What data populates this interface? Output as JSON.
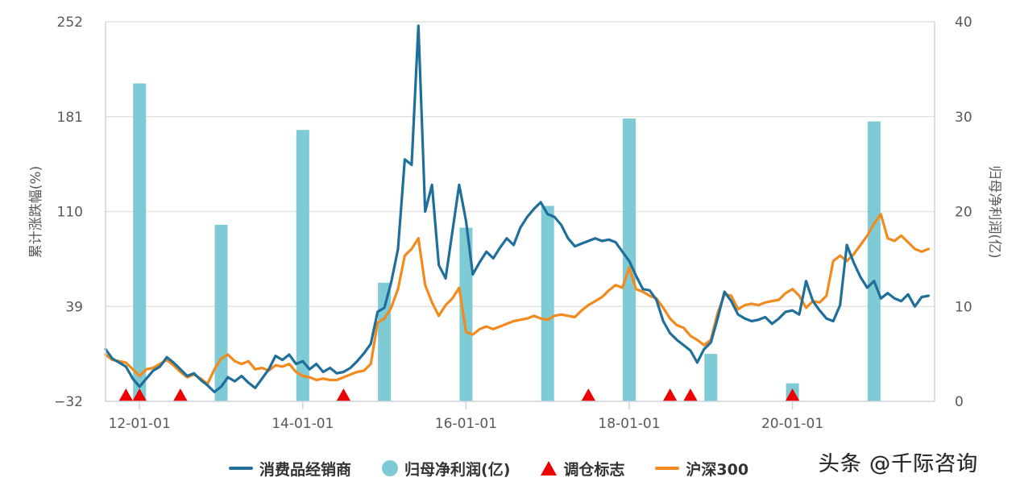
{
  "colors": {
    "distributor": "#1f6f9a",
    "net_profit": "#7ecbd6",
    "rebalance": "#ee0000",
    "csi300": "#f28a1e",
    "grid": "#e3e3e3",
    "axis": "#cdd3dd",
    "text": "#595959"
  },
  "legend": [
    {
      "key": "distributor",
      "label": "消费品经销商",
      "shape": "line"
    },
    {
      "key": "net_profit",
      "label": "归母净利润(亿)",
      "shape": "dot"
    },
    {
      "key": "rebalance",
      "label": "调仓标志",
      "shape": "triangle"
    },
    {
      "key": "csi300",
      "label": "沪深300",
      "shape": "line"
    }
  ],
  "watermark": "头条 @千际咨询",
  "chart_data": {
    "type": "line+bar",
    "title": "",
    "xlabel": "",
    "ylabel": "累计涨跌幅(%)",
    "y2label": "归母净利润(亿)",
    "ylim": [
      -32,
      252
    ],
    "y2lim": [
      0,
      40
    ],
    "yticks": [
      "252",
      "181",
      "110",
      "39",
      "-32"
    ],
    "y2ticks": [
      "40",
      "30",
      "20",
      "10",
      "0"
    ],
    "xticks": [
      "12-01-01",
      "14-01-01",
      "16-01-01",
      "18-01-01",
      "20-01-01"
    ],
    "xrange": [
      "2011-08",
      "2021-09"
    ],
    "grid": true,
    "legend_position": "bottom",
    "series": [
      {
        "name": "消费品经销商",
        "axis": "left",
        "type": "line",
        "points": [
          [
            "2011-08",
            7
          ],
          [
            "2011-09",
            0
          ],
          [
            "2011-10",
            -3
          ],
          [
            "2011-11",
            -6
          ],
          [
            "2011-12",
            -15
          ],
          [
            "2012-01",
            -21
          ],
          [
            "2012-02",
            -15
          ],
          [
            "2012-03",
            -9
          ],
          [
            "2012-04",
            -6
          ],
          [
            "2012-05",
            1
          ],
          [
            "2012-06",
            -3
          ],
          [
            "2012-07",
            -8
          ],
          [
            "2012-08",
            -13
          ],
          [
            "2012-09",
            -11
          ],
          [
            "2012-10",
            -16
          ],
          [
            "2012-11",
            -20
          ],
          [
            "2012-12",
            -25
          ],
          [
            "2013-01",
            -21
          ],
          [
            "2013-02",
            -14
          ],
          [
            "2013-03",
            -17
          ],
          [
            "2013-04",
            -13
          ],
          [
            "2013-05",
            -18
          ],
          [
            "2013-06",
            -22
          ],
          [
            "2013-07",
            -15
          ],
          [
            "2013-08",
            -8
          ],
          [
            "2013-09",
            2
          ],
          [
            "2013-10",
            -1
          ],
          [
            "2013-11",
            3
          ],
          [
            "2013-12",
            -4
          ],
          [
            "2014-01",
            -2
          ],
          [
            "2014-02",
            -8
          ],
          [
            "2014-03",
            -4
          ],
          [
            "2014-04",
            -10
          ],
          [
            "2014-05",
            -7
          ],
          [
            "2014-06",
            -11
          ],
          [
            "2014-07",
            -10
          ],
          [
            "2014-08",
            -7
          ],
          [
            "2014-09",
            -2
          ],
          [
            "2014-10",
            4
          ],
          [
            "2014-11",
            11
          ],
          [
            "2014-12",
            35
          ],
          [
            "2015-01",
            38
          ],
          [
            "2015-02",
            57
          ],
          [
            "2015-03",
            82
          ],
          [
            "2015-04",
            149
          ],
          [
            "2015-05",
            145
          ],
          [
            "2015-06",
            249
          ],
          [
            "2015-07",
            110
          ],
          [
            "2015-08",
            130
          ],
          [
            "2015-09",
            70
          ],
          [
            "2015-10",
            60
          ],
          [
            "2015-11",
            95
          ],
          [
            "2015-12",
            130
          ],
          [
            "2016-01",
            103
          ],
          [
            "2016-02",
            63
          ],
          [
            "2016-03",
            72
          ],
          [
            "2016-04",
            80
          ],
          [
            "2016-05",
            75
          ],
          [
            "2016-06",
            83
          ],
          [
            "2016-07",
            90
          ],
          [
            "2016-08",
            85
          ],
          [
            "2016-09",
            98
          ],
          [
            "2016-10",
            106
          ],
          [
            "2016-11",
            112
          ],
          [
            "2016-12",
            117
          ],
          [
            "2017-01",
            108
          ],
          [
            "2017-02",
            106
          ],
          [
            "2017-03",
            100
          ],
          [
            "2017-04",
            90
          ],
          [
            "2017-05",
            84
          ],
          [
            "2017-06",
            86
          ],
          [
            "2017-07",
            88
          ],
          [
            "2017-08",
            90
          ],
          [
            "2017-09",
            88
          ],
          [
            "2017-10",
            89
          ],
          [
            "2017-11",
            87
          ],
          [
            "2017-12",
            80
          ],
          [
            "2018-01",
            73
          ],
          [
            "2018-02",
            62
          ],
          [
            "2018-03",
            52
          ],
          [
            "2018-04",
            51
          ],
          [
            "2018-05",
            44
          ],
          [
            "2018-06",
            28
          ],
          [
            "2018-07",
            19
          ],
          [
            "2018-08",
            14
          ],
          [
            "2018-09",
            10
          ],
          [
            "2018-10",
            6
          ],
          [
            "2018-11",
            -3
          ],
          [
            "2018-12",
            7
          ],
          [
            "2019-01",
            12
          ],
          [
            "2019-02",
            30
          ],
          [
            "2019-03",
            50
          ],
          [
            "2019-04",
            43
          ],
          [
            "2019-05",
            33
          ],
          [
            "2019-06",
            30
          ],
          [
            "2019-07",
            28
          ],
          [
            "2019-08",
            29
          ],
          [
            "2019-09",
            31
          ],
          [
            "2019-10",
            26
          ],
          [
            "2019-11",
            30
          ],
          [
            "2019-12",
            35
          ],
          [
            "2020-01",
            36
          ],
          [
            "2020-02",
            33
          ],
          [
            "2020-03",
            58
          ],
          [
            "2020-04",
            43
          ],
          [
            "2020-05",
            36
          ],
          [
            "2020-06",
            30
          ],
          [
            "2020-07",
            28
          ],
          [
            "2020-08",
            40
          ],
          [
            "2020-09",
            85
          ],
          [
            "2020-10",
            72
          ],
          [
            "2020-11",
            61
          ],
          [
            "2020-12",
            53
          ],
          [
            "2021-01",
            58
          ],
          [
            "2021-02",
            45
          ],
          [
            "2021-03",
            49
          ],
          [
            "2021-04",
            45
          ],
          [
            "2021-05",
            43
          ],
          [
            "2021-06",
            48
          ],
          [
            "2021-07",
            39
          ],
          [
            "2021-08",
            46
          ],
          [
            "2021-09",
            47
          ]
        ]
      },
      {
        "name": "沪深300",
        "axis": "left",
        "type": "line",
        "points": [
          [
            "2011-08",
            3
          ],
          [
            "2011-09",
            -1
          ],
          [
            "2011-10",
            -2
          ],
          [
            "2011-11",
            -3
          ],
          [
            "2011-12",
            -8
          ],
          [
            "2012-01",
            -13
          ],
          [
            "2012-02",
            -8
          ],
          [
            "2012-03",
            -7
          ],
          [
            "2012-04",
            -4
          ],
          [
            "2012-05",
            -1
          ],
          [
            "2012-06",
            -5
          ],
          [
            "2012-07",
            -10
          ],
          [
            "2012-08",
            -14
          ],
          [
            "2012-09",
            -12
          ],
          [
            "2012-10",
            -15
          ],
          [
            "2012-11",
            -19
          ],
          [
            "2012-12",
            -8
          ],
          [
            "2013-01",
            0
          ],
          [
            "2013-02",
            3
          ],
          [
            "2013-03",
            -2
          ],
          [
            "2013-04",
            -4
          ],
          [
            "2013-05",
            -2
          ],
          [
            "2013-06",
            -8
          ],
          [
            "2013-07",
            -7
          ],
          [
            "2013-08",
            -9
          ],
          [
            "2013-09",
            -5
          ],
          [
            "2013-10",
            -6
          ],
          [
            "2013-11",
            -4
          ],
          [
            "2013-12",
            -10
          ],
          [
            "2014-01",
            -13
          ],
          [
            "2014-02",
            -14
          ],
          [
            "2014-03",
            -16
          ],
          [
            "2014-04",
            -15
          ],
          [
            "2014-05",
            -16
          ],
          [
            "2014-06",
            -16
          ],
          [
            "2014-07",
            -14
          ],
          [
            "2014-08",
            -12
          ],
          [
            "2014-09",
            -10
          ],
          [
            "2014-10",
            -9
          ],
          [
            "2014-11",
            -4
          ],
          [
            "2014-12",
            27
          ],
          [
            "2015-01",
            30
          ],
          [
            "2015-02",
            38
          ],
          [
            "2015-03",
            52
          ],
          [
            "2015-04",
            77
          ],
          [
            "2015-05",
            82
          ],
          [
            "2015-06",
            90
          ],
          [
            "2015-07",
            55
          ],
          [
            "2015-08",
            42
          ],
          [
            "2015-09",
            32
          ],
          [
            "2015-10",
            40
          ],
          [
            "2015-11",
            45
          ],
          [
            "2015-12",
            53
          ],
          [
            "2016-01",
            20
          ],
          [
            "2016-02",
            18
          ],
          [
            "2016-03",
            22
          ],
          [
            "2016-04",
            24
          ],
          [
            "2016-05",
            22
          ],
          [
            "2016-06",
            24
          ],
          [
            "2016-07",
            26
          ],
          [
            "2016-08",
            28
          ],
          [
            "2016-09",
            29
          ],
          [
            "2016-10",
            30
          ],
          [
            "2016-11",
            32
          ],
          [
            "2016-12",
            30
          ],
          [
            "2017-01",
            29
          ],
          [
            "2017-02",
            32
          ],
          [
            "2017-03",
            33
          ],
          [
            "2017-04",
            32
          ],
          [
            "2017-05",
            31
          ],
          [
            "2017-06",
            36
          ],
          [
            "2017-07",
            40
          ],
          [
            "2017-08",
            43
          ],
          [
            "2017-09",
            46
          ],
          [
            "2017-10",
            51
          ],
          [
            "2017-11",
            55
          ],
          [
            "2017-12",
            53
          ],
          [
            "2018-01",
            68
          ],
          [
            "2018-02",
            52
          ],
          [
            "2018-03",
            50
          ],
          [
            "2018-04",
            47
          ],
          [
            "2018-05",
            45
          ],
          [
            "2018-06",
            38
          ],
          [
            "2018-07",
            30
          ],
          [
            "2018-08",
            25
          ],
          [
            "2018-09",
            23
          ],
          [
            "2018-10",
            17
          ],
          [
            "2018-11",
            14
          ],
          [
            "2018-12",
            10
          ],
          [
            "2019-01",
            14
          ],
          [
            "2019-02",
            34
          ],
          [
            "2019-03",
            48
          ],
          [
            "2019-04",
            47
          ],
          [
            "2019-05",
            37
          ],
          [
            "2019-06",
            40
          ],
          [
            "2019-07",
            41
          ],
          [
            "2019-08",
            40
          ],
          [
            "2019-09",
            42
          ],
          [
            "2019-10",
            43
          ],
          [
            "2019-11",
            44
          ],
          [
            "2019-12",
            49
          ],
          [
            "2020-01",
            52
          ],
          [
            "2020-02",
            47
          ],
          [
            "2020-03",
            38
          ],
          [
            "2020-04",
            43
          ],
          [
            "2020-05",
            42
          ],
          [
            "2020-06",
            47
          ],
          [
            "2020-07",
            73
          ],
          [
            "2020-08",
            77
          ],
          [
            "2020-09",
            73
          ],
          [
            "2020-10",
            78
          ],
          [
            "2020-11",
            85
          ],
          [
            "2020-12",
            92
          ],
          [
            "2021-01",
            101
          ],
          [
            "2021-02",
            108
          ],
          [
            "2021-03",
            90
          ],
          [
            "2021-04",
            88
          ],
          [
            "2021-05",
            92
          ],
          [
            "2021-06",
            87
          ],
          [
            "2021-07",
            82
          ],
          [
            "2021-08",
            80
          ],
          [
            "2021-09",
            82
          ]
        ]
      },
      {
        "name": "归母净利润(亿)",
        "axis": "right",
        "type": "bar",
        "points": [
          [
            "2012-01",
            33.5
          ],
          [
            "2013-01",
            18.6
          ],
          [
            "2014-01",
            28.6
          ],
          [
            "2015-01",
            12.5
          ],
          [
            "2016-01",
            18.3
          ],
          [
            "2017-01",
            20.6
          ],
          [
            "2018-01",
            29.8
          ],
          [
            "2019-01",
            5.0
          ],
          [
            "2020-01",
            1.9
          ],
          [
            "2021-01",
            29.5
          ]
        ]
      },
      {
        "name": "调仓标志",
        "type": "marker",
        "dates": [
          "2011-11",
          "2012-01",
          "2012-07",
          "2014-07",
          "2017-07",
          "2018-07",
          "2018-10",
          "2020-01"
        ]
      }
    ]
  }
}
